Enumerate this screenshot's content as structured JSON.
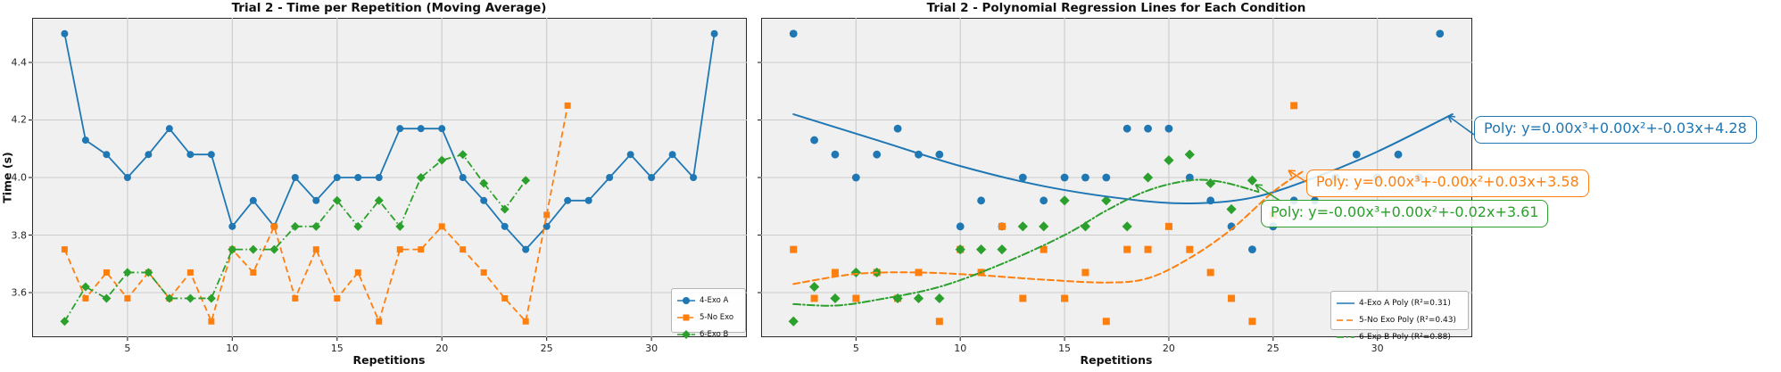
{
  "figure_bg": "#ffffff",
  "style": {
    "axes_bg": "#f0f0f0",
    "grid_color": "#cbcbcb",
    "spine_color": "#2a2a2a",
    "tick_color": "#262626",
    "blue": "#1f77b4",
    "orange": "#ff7f0e",
    "green": "#2ca02c"
  },
  "chart_data": [
    {
      "type": "line",
      "title": "Trial 2 - Time per Repetition (Moving Average)",
      "xlabel": "Repetitions",
      "ylabel": "Time (s)",
      "xlim": [
        0.45,
        34.55
      ],
      "ylim": [
        3.445,
        4.555
      ],
      "xticks": [
        5,
        10,
        15,
        20,
        25,
        30
      ],
      "yticks": [
        3.6,
        3.8,
        4.0,
        4.2,
        4.4
      ],
      "ytick_labels": [
        "3.6",
        "3.8",
        "4.0",
        "4.2",
        "4.4"
      ],
      "grid": true,
      "legend_position": "lower right",
      "series": [
        {
          "name": "4-Exo A",
          "color": "#1f77b4",
          "marker": "circle",
          "line": "solid",
          "x": [
            2,
            3,
            4,
            5,
            6,
            7,
            8,
            9,
            10,
            11,
            12,
            13,
            14,
            15,
            16,
            17,
            18,
            19,
            20,
            21,
            22,
            23,
            24,
            25,
            26,
            27,
            28,
            29,
            30,
            31,
            32,
            33
          ],
          "y": [
            4.5,
            4.13,
            4.08,
            4.0,
            4.08,
            4.17,
            4.08,
            4.08,
            3.83,
            3.92,
            3.83,
            4.0,
            3.92,
            4.0,
            4.0,
            4.0,
            4.17,
            4.17,
            4.17,
            4.0,
            3.92,
            3.83,
            3.75,
            3.83,
            3.92,
            3.92,
            4.0,
            4.08,
            4.0,
            4.08,
            4.0,
            4.5
          ]
        },
        {
          "name": "5-No Exo",
          "color": "#ff7f0e",
          "marker": "square",
          "line": "dashed",
          "x": [
            2,
            3,
            4,
            5,
            6,
            7,
            8,
            9,
            10,
            11,
            12,
            13,
            14,
            15,
            16,
            17,
            18,
            19,
            20,
            21,
            22,
            23,
            24,
            25,
            26
          ],
          "y": [
            3.75,
            3.58,
            3.67,
            3.58,
            3.67,
            3.58,
            3.67,
            3.5,
            3.75,
            3.67,
            3.83,
            3.58,
            3.75,
            3.58,
            3.67,
            3.5,
            3.75,
            3.75,
            3.83,
            3.75,
            3.67,
            3.58,
            3.5,
            3.87,
            4.25
          ]
        },
        {
          "name": "6-Exo B",
          "color": "#2ca02c",
          "marker": "diamond",
          "line": "dashdot",
          "x": [
            2,
            3,
            4,
            5,
            6,
            7,
            8,
            9,
            10,
            11,
            12,
            13,
            14,
            15,
            16,
            17,
            18,
            19,
            20,
            21,
            22,
            23,
            24
          ],
          "y": [
            3.5,
            3.62,
            3.58,
            3.67,
            3.67,
            3.58,
            3.58,
            3.58,
            3.75,
            3.75,
            3.75,
            3.83,
            3.83,
            3.92,
            3.83,
            3.92,
            3.83,
            4.0,
            4.06,
            4.08,
            3.98,
            3.89,
            3.99
          ]
        }
      ]
    },
    {
      "type": "scatter",
      "title": "Trial 2 - Polynomial Regression Lines for Each Condition",
      "xlabel": "Repetitions",
      "ylabel": "",
      "xlim": [
        0.45,
        34.55
      ],
      "ylim": [
        3.445,
        4.555
      ],
      "xticks": [
        5,
        10,
        15,
        20,
        25,
        30
      ],
      "yticks": [
        3.6,
        3.8,
        4.0,
        4.2,
        4.4
      ],
      "grid": true,
      "legend_position": "lower right",
      "series": [
        {
          "name": "4-Exo A",
          "color": "#1f77b4",
          "marker": "circle",
          "x": [
            2,
            3,
            4,
            5,
            6,
            7,
            8,
            9,
            10,
            11,
            12,
            13,
            14,
            15,
            16,
            17,
            18,
            19,
            20,
            21,
            22,
            23,
            24,
            25,
            26,
            27,
            28,
            29,
            30,
            31,
            32,
            33
          ],
          "y": [
            4.5,
            4.13,
            4.08,
            4.0,
            4.08,
            4.17,
            4.08,
            4.08,
            3.83,
            3.92,
            3.83,
            4.0,
            3.92,
            4.0,
            4.0,
            4.0,
            4.17,
            4.17,
            4.17,
            4.0,
            3.92,
            3.83,
            3.75,
            3.83,
            3.92,
            3.92,
            4.0,
            4.08,
            4.0,
            4.08,
            4.0,
            4.5
          ]
        },
        {
          "name": "5-No Exo",
          "color": "#ff7f0e",
          "marker": "square",
          "x": [
            2,
            3,
            4,
            5,
            6,
            7,
            8,
            9,
            10,
            11,
            12,
            13,
            14,
            15,
            16,
            17,
            18,
            19,
            20,
            21,
            22,
            23,
            24,
            25,
            26
          ],
          "y": [
            3.75,
            3.58,
            3.67,
            3.58,
            3.67,
            3.58,
            3.67,
            3.5,
            3.75,
            3.67,
            3.83,
            3.58,
            3.75,
            3.58,
            3.67,
            3.5,
            3.75,
            3.75,
            3.83,
            3.75,
            3.67,
            3.58,
            3.5,
            3.87,
            4.25
          ]
        },
        {
          "name": "6-Exo B",
          "color": "#2ca02c",
          "marker": "diamond",
          "x": [
            2,
            3,
            4,
            5,
            6,
            7,
            8,
            9,
            10,
            11,
            12,
            13,
            14,
            15,
            16,
            17,
            18,
            19,
            20,
            21,
            22,
            23,
            24
          ],
          "y": [
            3.5,
            3.62,
            3.58,
            3.67,
            3.67,
            3.58,
            3.58,
            3.58,
            3.75,
            3.75,
            3.75,
            3.83,
            3.83,
            3.92,
            3.83,
            3.92,
            3.83,
            4.0,
            4.06,
            4.08,
            3.98,
            3.89,
            3.99
          ]
        }
      ],
      "fits": [
        {
          "name": "4-Exo A Poly (R²=0.31)",
          "color": "#1f77b4",
          "line": "solid",
          "r2": 0.31,
          "anchors_x": [
            2,
            6,
            10,
            14,
            18,
            21,
            24,
            27,
            30,
            33.6
          ],
          "anchors_y": [
            4.22,
            4.13,
            4.04,
            3.97,
            3.925,
            3.91,
            3.93,
            4.0,
            4.09,
            4.22
          ]
        },
        {
          "name": "5-No Exo Poly (R²=0.43)",
          "color": "#ff7f0e",
          "line": "dashed",
          "r2": 0.43,
          "anchors_x": [
            2,
            5,
            8,
            11,
            14,
            17,
            19,
            21,
            23,
            25,
            26.4
          ],
          "anchors_y": [
            3.63,
            3.665,
            3.67,
            3.66,
            3.645,
            3.635,
            3.65,
            3.72,
            3.82,
            3.95,
            4.02
          ]
        },
        {
          "name": "6-Exo B Poly (R²=0.88)",
          "color": "#2ca02c",
          "line": "dashdot",
          "r2": 0.88,
          "anchors_x": [
            2,
            4,
            6,
            9,
            12,
            15,
            17,
            19,
            21,
            22.5,
            24.3
          ],
          "anchors_y": [
            3.56,
            3.555,
            3.575,
            3.62,
            3.7,
            3.8,
            3.885,
            3.955,
            3.99,
            3.985,
            3.95
          ]
        }
      ],
      "annotations": [
        {
          "text": "Poly: y=0.00x³+0.00x²+-0.03x+4.28",
          "color": "#1f77b4"
        },
        {
          "text": "Poly: y=0.00x³+-0.00x²+0.03x+3.58",
          "color": "#ff7f0e"
        },
        {
          "text": "Poly: y=-0.00x³+0.00x²+-0.02x+3.61",
          "color": "#2ca02c"
        }
      ]
    }
  ]
}
